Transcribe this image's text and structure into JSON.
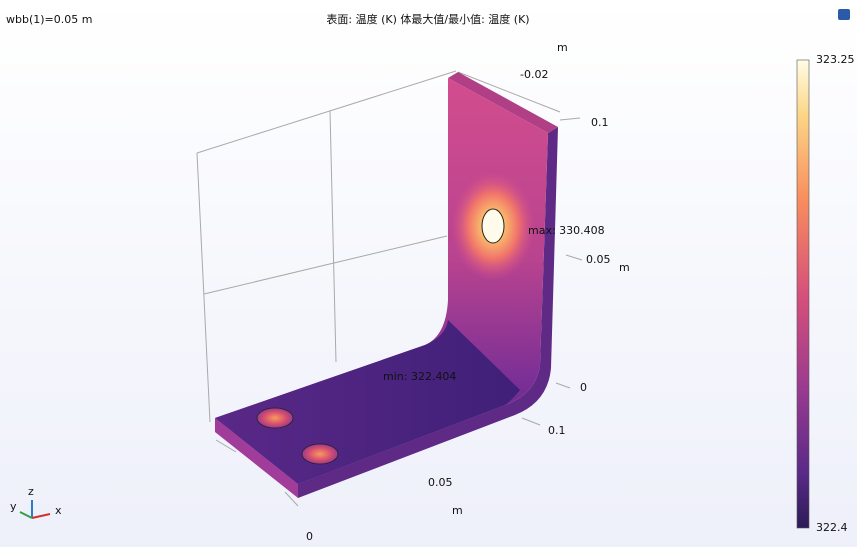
{
  "header": {
    "left": "wbb(1)=0.05 m",
    "title": "表面: 温度 (K)  体最大值/最小值: 温度 (K)"
  },
  "axis_labels": [
    "m",
    "-0.02",
    "0.1",
    "0.05",
    "m",
    "0",
    "0.1",
    "0.05",
    "m",
    "0"
  ],
  "annotations": {
    "max": "max: 330.408",
    "min": "min: 322.404"
  },
  "colorbar": {
    "top": "323.25",
    "bottom": "322.4"
  },
  "triad": {
    "y": "y",
    "z": "z",
    "x": "x"
  }
}
